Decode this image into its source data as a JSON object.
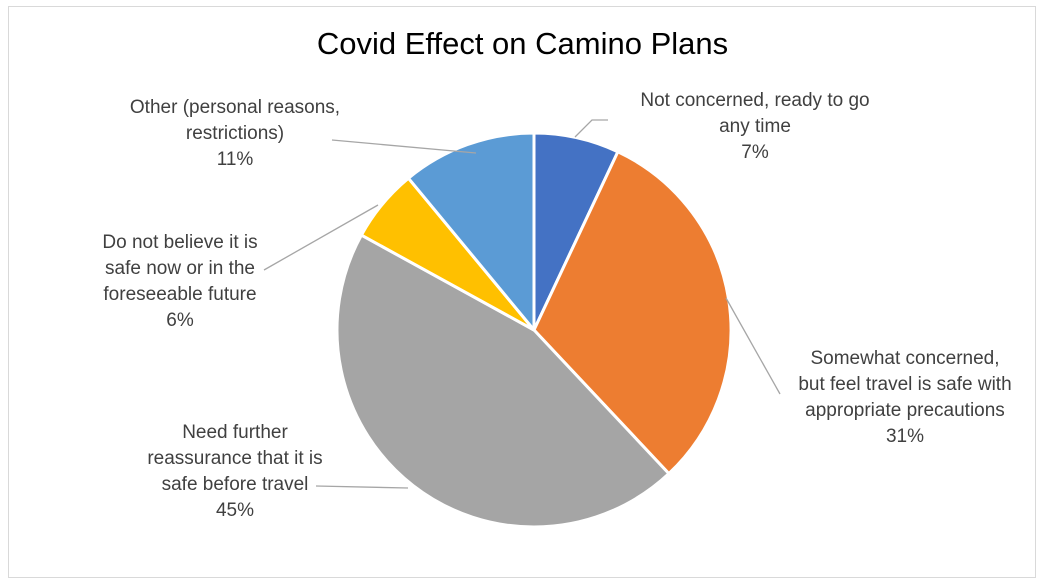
{
  "chart_data": {
    "type": "pie",
    "title": "Covid Effect on Camino Plans",
    "start_angle_deg": 0,
    "direction": "clockwise",
    "legend": "none",
    "slices": [
      {
        "label": "Not concerned, ready to go any time",
        "label_lines": [
          "Not concerned, ready to go",
          "any time"
        ],
        "value": 7,
        "display": "7%",
        "color": "#4472C4"
      },
      {
        "label": "Somewhat concerned, but feel travel is safe with appropriate precautions",
        "label_lines": [
          "Somewhat concerned,",
          "but feel travel is safe with",
          "appropriate precautions"
        ],
        "value": 31,
        "display": "31%",
        "color": "#ED7D31"
      },
      {
        "label": "Need further reassurance that it is safe before travel",
        "label_lines": [
          "Need further",
          "reassurance that it is",
          "safe before travel"
        ],
        "value": 45,
        "display": "45%",
        "color": "#A5A5A5"
      },
      {
        "label": "Do not believe it is safe now or in the foreseeable future",
        "label_lines": [
          "Do not believe it is",
          "safe now or in the",
          "foreseeable future"
        ],
        "value": 6,
        "display": "6%",
        "color": "#FFC000"
      },
      {
        "label": "Other (personal reasons, restrictions)",
        "label_lines": [
          "Other (personal reasons,",
          "restrictions)"
        ],
        "value": 11,
        "display": "11%",
        "color": "#5B9BD5"
      }
    ]
  }
}
